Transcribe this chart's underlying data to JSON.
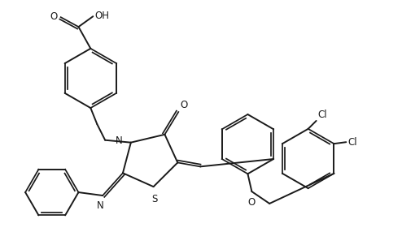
{
  "bg_color": "#ffffff",
  "line_color": "#1a1a1a",
  "line_width": 1.4,
  "figsize": [
    4.94,
    2.86
  ],
  "dpi": 100,
  "xlim": [
    0,
    4.94
  ],
  "ylim": [
    0,
    2.86
  ]
}
